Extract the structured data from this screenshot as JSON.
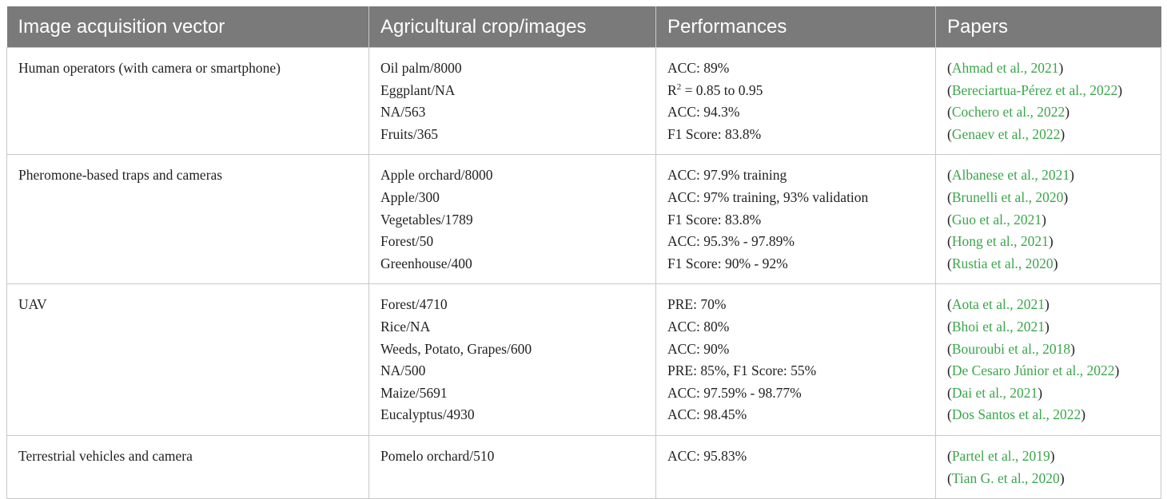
{
  "headers": [
    "Image acquisition vector",
    "Agricultural crop/images",
    "Performances",
    "Papers"
  ],
  "rows": [
    {
      "vector": "Human operators (with camera or smartphone)",
      "crops": [
        "Oil palm/8000",
        "Eggplant/NA",
        "NA/563",
        "Fruits/365"
      ],
      "performances": [
        "ACC: 89%",
        "R",
        "ACC: 94.3%",
        "F1 Score: 83.8%"
      ],
      "r2": {
        "sup": "2",
        "rest": " = 0.85 to 0.95"
      },
      "papers": [
        "Ahmad et al., 2021",
        "Bereciartua-Pérez et al., 2022",
        "Cochero et al., 2022",
        "Genaev et al., 2022"
      ]
    },
    {
      "vector": "Pheromone-based traps and cameras",
      "crops": [
        "Apple orchard/8000",
        "Apple/300",
        "Vegetables/1789",
        "Forest/50",
        "Greenhouse/400"
      ],
      "performances": [
        "ACC: 97.9% training",
        "ACC: 97% training, 93% validation",
        "F1 Score: 83.8%",
        "ACC: 95.3% - 97.89%",
        "F1 Score: 90% - 92%"
      ],
      "papers": [
        "Albanese et al., 2021",
        "Brunelli et al., 2020",
        "Guo et al., 2021",
        "Hong et al., 2021",
        "Rustia et al., 2020"
      ]
    },
    {
      "vector": "UAV",
      "crops": [
        "Forest/4710",
        "Rice/NA",
        "Weeds, Potato, Grapes/600",
        "NA/500",
        "Maize/5691",
        "Eucalyptus/4930"
      ],
      "performances": [
        "PRE: 70%",
        "ACC: 80%",
        "ACC: 90%",
        "PRE: 85%, F1 Score: 55%",
        "ACC: 97.59% - 98.77%",
        "ACC: 98.45%"
      ],
      "papers": [
        "Aota et al., 2021",
        "Bhoi et al., 2021",
        "Bouroubi et al., 2018",
        "De Cesaro Júnior et al., 2022",
        "Dai et al., 2021",
        "Dos Santos et al., 2022"
      ]
    },
    {
      "vector": "Terrestrial vehicles and camera",
      "crops": [
        "Pomelo orchard/510"
      ],
      "performances": [
        "ACC: 95.83%"
      ],
      "papers": [
        "Partel et al., 2019",
        "Tian G. et al., 2020"
      ]
    }
  ],
  "colors": {
    "header_bg": "#7a7a7a",
    "header_text": "#ffffff",
    "citation": "#3aa64a",
    "border": "#c8c8c8"
  }
}
